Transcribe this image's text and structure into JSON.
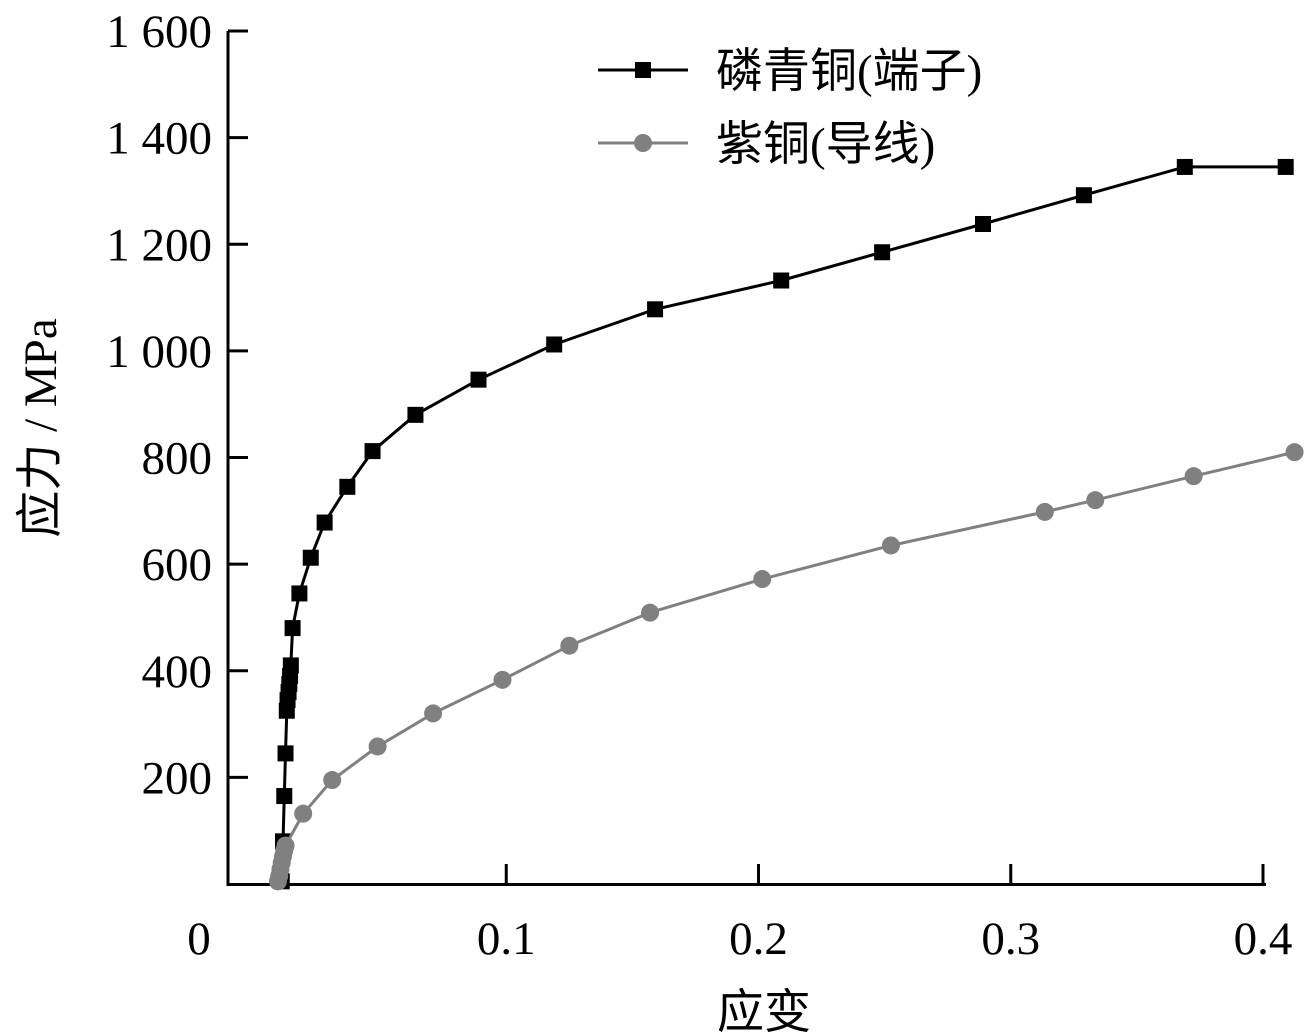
{
  "chart_data": {
    "type": "line",
    "title": "",
    "xlabel": "应变",
    "ylabel": "应力 / MPa",
    "xlim": [
      0,
      0.4
    ],
    "ylim": [
      0,
      1600
    ],
    "x_ticks": [
      0.1,
      0.2,
      0.3,
      0.4
    ],
    "x_tick_labels": [
      "0.1",
      "0.2",
      "0.3",
      "0.4"
    ],
    "origin_label": "0",
    "y_ticks": [
      200,
      400,
      600,
      800,
      1000,
      1200,
      1400,
      1600
    ],
    "y_tick_labels": [
      "200",
      "400",
      "600",
      "800",
      "1 000",
      "1 200",
      "1 400",
      "1 600"
    ],
    "grid": false,
    "legend_position": "top-right",
    "series": [
      {
        "name": "磷青铜(端子)",
        "color": "#000000",
        "marker": "square",
        "x": [
          0.011,
          0.0115,
          0.012,
          0.0125,
          0.013,
          0.0133,
          0.0137,
          0.014,
          0.0143,
          0.0146,
          0.0153,
          0.018,
          0.0225,
          0.028,
          0.037,
          0.047,
          0.064,
          0.089,
          0.119,
          0.159,
          0.209,
          0.249,
          0.289,
          0.329,
          0.369,
          0.409
        ],
        "y": [
          5,
          80,
          165,
          245,
          325,
          345,
          360,
          375,
          390,
          410,
          480,
          545,
          612,
          678,
          745,
          812,
          880,
          946,
          1012,
          1078,
          1132,
          1185,
          1238,
          1292,
          1345,
          1345
        ]
      },
      {
        "name": "紫铜(导线)",
        "color": "#808080",
        "marker": "circle",
        "x": [
          0.0095,
          0.01,
          0.0105,
          0.011,
          0.0115,
          0.012,
          0.0125,
          0.0195,
          0.031,
          0.049,
          0.071,
          0.0985,
          0.125,
          0.157,
          0.2015,
          0.2525,
          0.3135,
          0.3335,
          0.3725,
          0.4125
        ],
        "y": [
          5,
          15,
          28,
          40,
          52,
          63,
          72,
          132,
          195,
          258,
          320,
          383,
          447,
          509,
          572,
          635,
          698,
          720,
          765,
          810
        ]
      }
    ]
  }
}
